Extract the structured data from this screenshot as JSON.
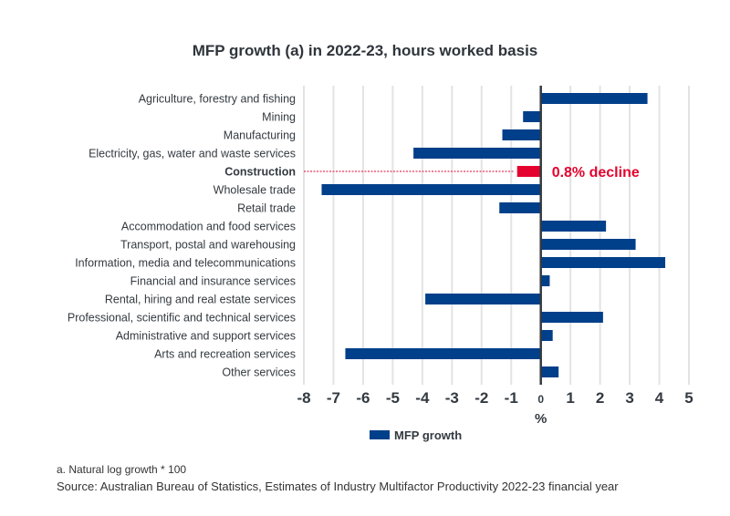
{
  "chart_data": {
    "type": "bar",
    "orientation": "horizontal",
    "title": "MFP growth (a) in 2022-23, hours worked basis",
    "xlabel": "%",
    "ylabel": "",
    "xlim": [
      -8,
      5
    ],
    "xticks": [
      "-8",
      "-7",
      "-6",
      "-5",
      "-4",
      "-3",
      "-2",
      "-1",
      "0",
      "1",
      "2",
      "3",
      "4",
      "5"
    ],
    "grid": true,
    "legend": {
      "position": "bottom",
      "entries": [
        {
          "label": "MFP growth",
          "color": "#003f8a"
        }
      ]
    },
    "categories": [
      "Agriculture, forestry and fishing",
      "Mining",
      "Manufacturing",
      "Electricity, gas, water and waste services",
      "Construction",
      "Wholesale trade",
      "Retail trade",
      "Accommodation and food services",
      "Transport, postal and warehousing",
      "Information, media and telecommunications",
      "Financial and insurance services",
      "Rental, hiring and real estate services",
      "Professional, scientific and technical services",
      "Administrative and support services",
      "Arts and recreation services",
      "Other services"
    ],
    "series": [
      {
        "name": "MFP growth",
        "values": [
          3.6,
          -0.6,
          -1.3,
          -4.3,
          -0.8,
          -7.4,
          -1.4,
          2.2,
          3.2,
          4.2,
          0.3,
          -3.9,
          2.1,
          0.4,
          -6.6,
          0.6
        ]
      }
    ],
    "highlight": {
      "category": "Construction",
      "color": "#e4032e",
      "annotation": "0.8% decline"
    },
    "colors": {
      "bar": "#003f8a",
      "highlight": "#e4032e",
      "grid": "#e3e3e3",
      "axis": "#333a40"
    }
  },
  "footnote": "a. Natural log growth * 100",
  "source": "Source: Australian Bureau of Statistics, Estimates of Industry Multifactor Productivity 2022-23 financial year"
}
